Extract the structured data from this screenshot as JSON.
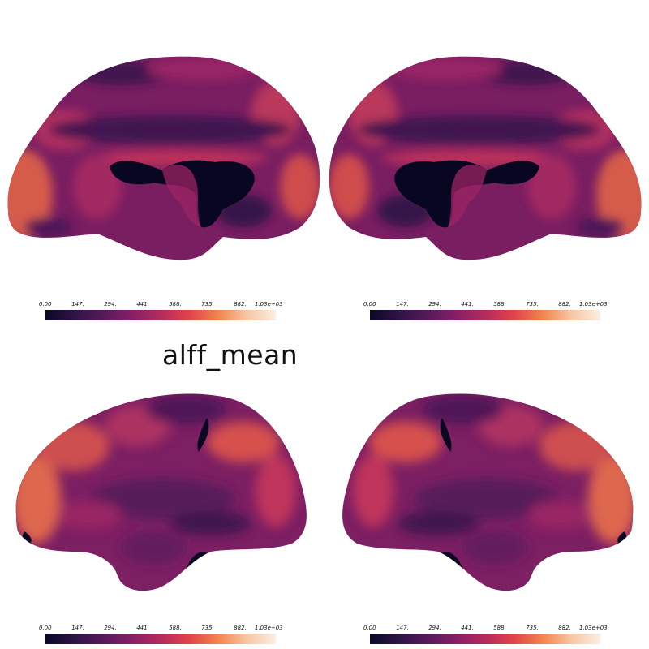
{
  "title": "alff_mean",
  "colorbar": {
    "ticks": [
      "0.00",
      "147.",
      "294.",
      "441.",
      "588.",
      "735.",
      "882.",
      "1.03e+03"
    ],
    "colors": [
      "#0b0824",
      "#2e1446",
      "#561a5b",
      "#852068",
      "#b52b5e",
      "#e0444a",
      "#f2854e",
      "#f7c7a3",
      "#fbeee2"
    ]
  },
  "views": [
    {
      "name": "left-medial"
    },
    {
      "name": "right-medial"
    },
    {
      "name": "left-lateral"
    },
    {
      "name": "right-lateral"
    }
  ]
}
